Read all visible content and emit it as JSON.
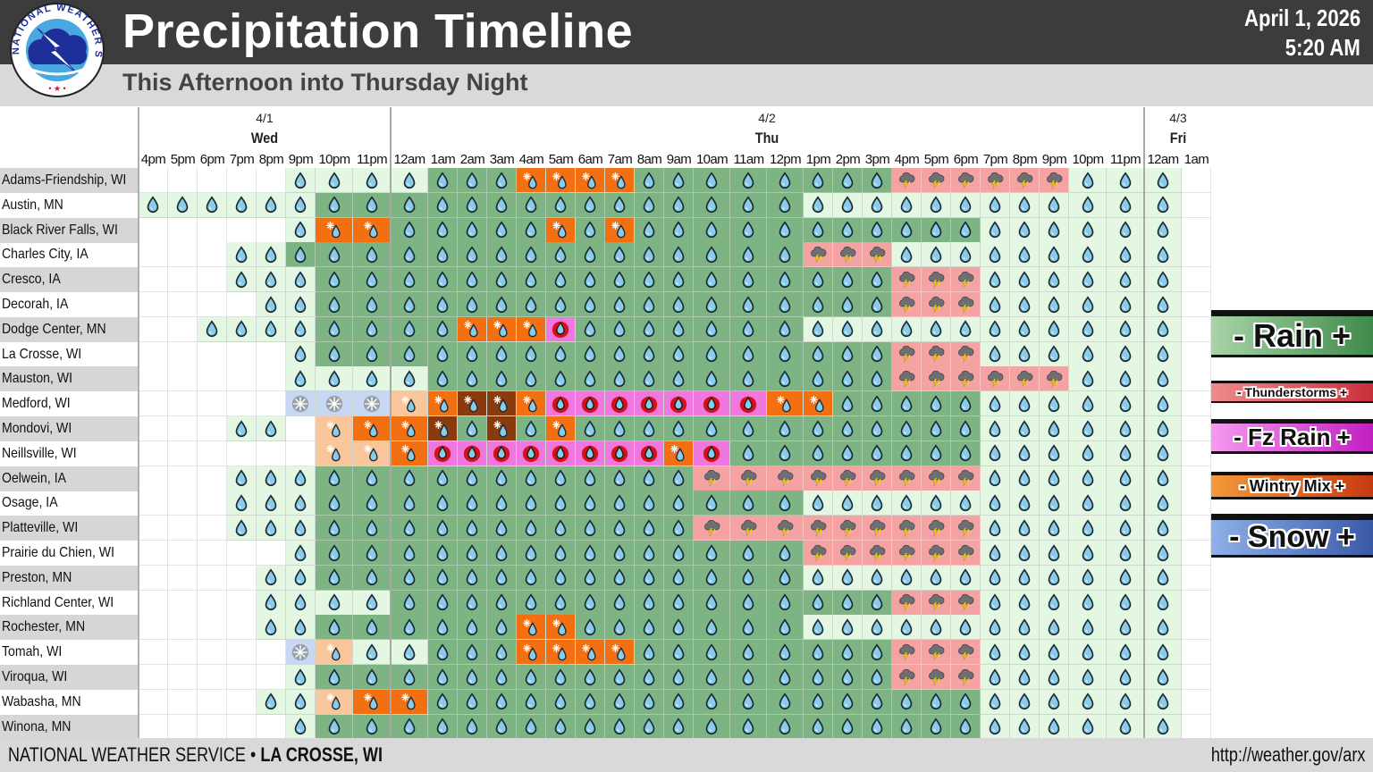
{
  "header": {
    "title": "Precipitation Timeline",
    "subtitle": "This Afternoon into Thursday Night",
    "date": "April 1, 2026",
    "time": "5:20 AM",
    "logo_text": "NATIONAL WEATHER SERVICE"
  },
  "days": [
    {
      "date": "4/1",
      "name": "Wed"
    },
    {
      "date": "4/2",
      "name": "Thu"
    },
    {
      "date": "4/3",
      "name": "Fri"
    }
  ],
  "hours": [
    "4pm",
    "5pm",
    "6pm",
    "7pm",
    "8pm",
    "9pm",
    "10pm",
    "11pm",
    "12am",
    "1am",
    "2am",
    "3am",
    "4am",
    "5am",
    "6am",
    "7am",
    "8am",
    "9am",
    "10am",
    "11am",
    "12pm",
    "1pm",
    "2pm",
    "3pm",
    "4pm",
    "5pm",
    "6pm",
    "7pm",
    "8pm",
    "9pm",
    "10pm",
    "11pm",
    "12am",
    "1am"
  ],
  "cell_codes": {
    ".": "none",
    "l": "light rain",
    "r": "rain",
    "t": "thunderstorms",
    "f": "freezing rain",
    "p": "light wintry mix",
    "m": "wintry mix",
    "d": "heavy wintry mix",
    "s": "light snow"
  },
  "locations": [
    {
      "name": "Adams-Friendship, WI",
      "cells": "5. 4l 3r 4m 8r 6t 3l 1."
    },
    {
      "name": "Austin, MN",
      "cells": "6l 15r 12l 1."
    },
    {
      "name": "Black River Falls, WI",
      "cells": "5. 1l 2m 5r 1m 1r 1m 11r 6l 1."
    },
    {
      "name": "Charles City, IA",
      "cells": "3. 2l 16r 3t 9l 1."
    },
    {
      "name": "Cresco, IA",
      "cells": "3. 3l 18r 3t 6l 1."
    },
    {
      "name": "Decorah, IA",
      "cells": "4. 2l 18r 3t 6l 1."
    },
    {
      "name": "Dodge Center, MN",
      "cells": "2. 4l 4r 3m 1f 7r 12l 1."
    },
    {
      "name": "La Crosse, WI",
      "cells": "5. 1l 18r 3t 6l 1."
    },
    {
      "name": "Mauston, WI",
      "cells": "5. 4l 15r 6t 3l 1."
    },
    {
      "name": "Medford, WI",
      "cells": "5. 3s 1p 1m 2d 1m 7f 2m 5r 6l 1."
    },
    {
      "name": "Mondovi, WI",
      "cells": "3. 2l 1. 1p 2m 1d 1r 1d 1r 1m 13r 6l 1."
    },
    {
      "name": "Neillsville, WI",
      "cells": "6. 2p 1m 8f 1m 1f 8r 6l 1."
    },
    {
      "name": "Oelwein, IA",
      "cells": "3. 3l 12r 9t 6l 1."
    },
    {
      "name": "Osage, IA",
      "cells": "3. 3l 15r 12l 1."
    },
    {
      "name": "Platteville, WI",
      "cells": "3. 3l 12r 9t 6l 1."
    },
    {
      "name": "Prairie du Chien, WI",
      "cells": "5. 1l 15r 6t 6l 1."
    },
    {
      "name": "Preston, MN",
      "cells": "4. 2l 15r 12l 1."
    },
    {
      "name": "Richland Center, WI",
      "cells": "4. 4l 16r 3t 6l 1."
    },
    {
      "name": "Rochester, MN",
      "cells": "4. 2l 6r 2m 7r 12l 1."
    },
    {
      "name": "Tomah, WI",
      "cells": "5. 1s 1p 2l 3r 4m 8r 3t 6l 1."
    },
    {
      "name": "Viroqua, WI",
      "cells": "5. 1l 18r 3t 6l 1."
    },
    {
      "name": "Wabasha, MN",
      "cells": "4. 2l 1p 2m 18r 6l 1."
    },
    {
      "name": "Winona, MN",
      "cells": "5. 1l 21r 6l 1."
    }
  ],
  "legend": [
    {
      "label": "- Rain +",
      "colors": [
        "#a8d4a8",
        "#3f8a4a"
      ]
    },
    {
      "label": "- Thunderstorms +",
      "colors": [
        "#f08a8a",
        "#c8303a"
      ]
    },
    {
      "label": "- Fz Rain +",
      "colors": [
        "#f59af0",
        "#c21fc0"
      ]
    },
    {
      "label": "- Wintry Mix +",
      "colors": [
        "#f39a3a",
        "#c83a10"
      ]
    },
    {
      "label": "- Snow +",
      "colors": [
        "#8fb0e8",
        "#3a5aa8"
      ]
    }
  ],
  "footer": {
    "agency": "NATIONAL WEATHER SERVICE",
    "bullet": "•",
    "office": "LA CROSSE, WI",
    "url": "http://weather.gov/arx"
  }
}
